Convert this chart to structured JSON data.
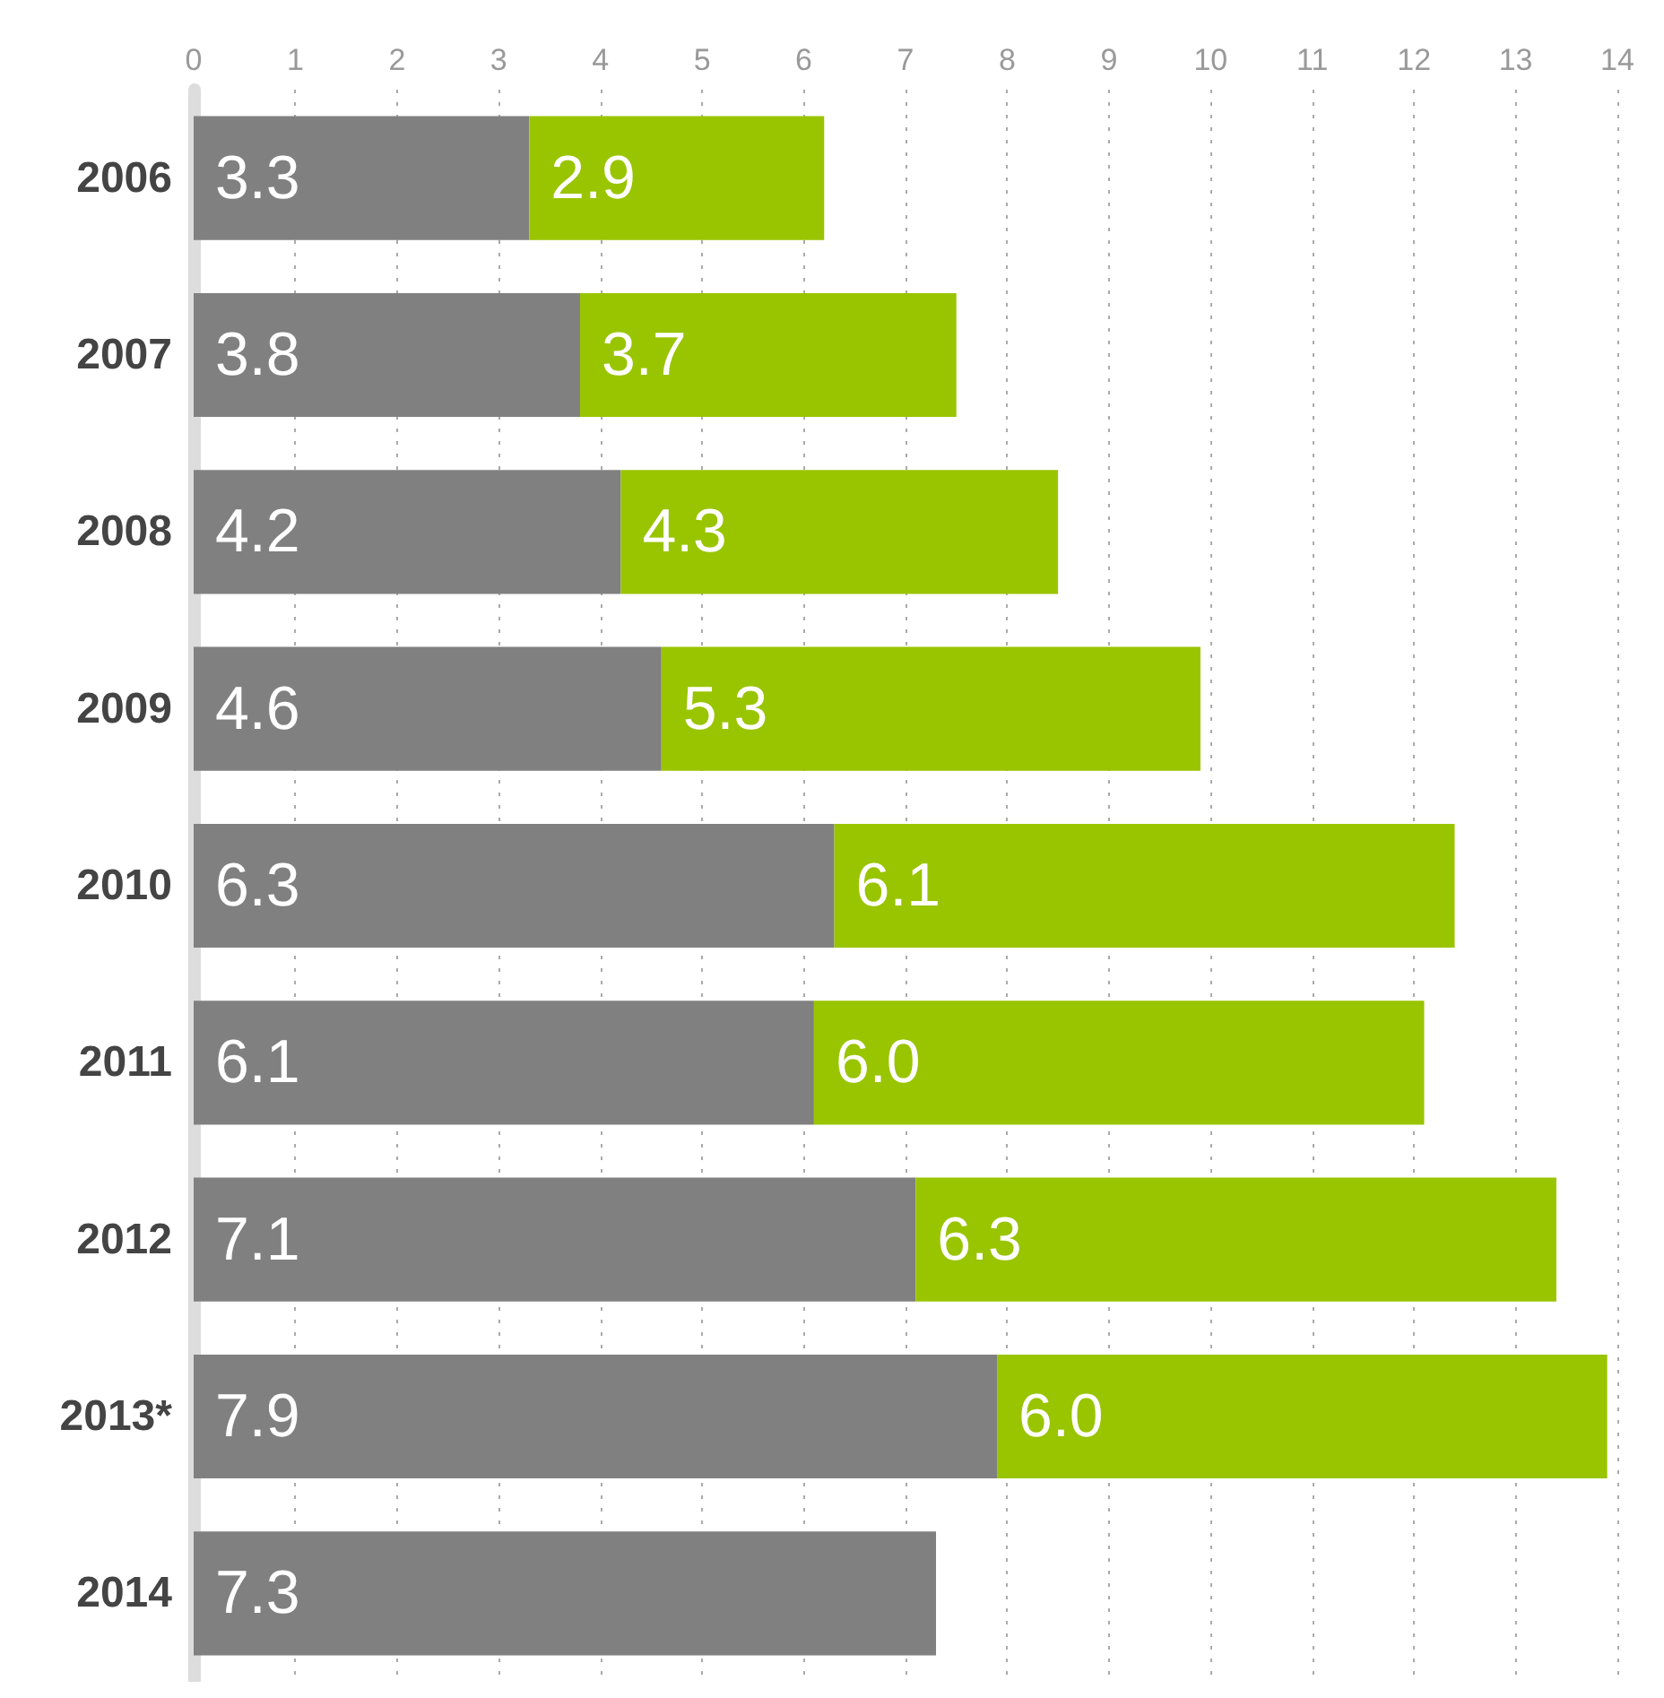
{
  "chart_data": {
    "type": "bar",
    "orientation": "horizontal",
    "stacked": true,
    "categories": [
      "2006",
      "2007",
      "2008",
      "2009",
      "2010",
      "2011",
      "2012",
      "2013*",
      "2014"
    ],
    "series": [
      {
        "color": "#808080",
        "values": [
          3.3,
          3.8,
          4.2,
          4.6,
          6.3,
          6.1,
          7.1,
          7.9,
          7.3
        ],
        "value_labels": [
          "3.3",
          "3.8",
          "4.2",
          "4.6",
          "6.3",
          "6.1",
          "7.1",
          "7.9",
          "7.3"
        ]
      },
      {
        "color": "#99c400",
        "values": [
          2.9,
          3.7,
          4.3,
          5.3,
          6.1,
          6.0,
          6.3,
          6.0,
          null
        ],
        "value_labels": [
          "2.9",
          "3.7",
          "4.3",
          "5.3",
          "6.1",
          "6.0",
          "6.3",
          "6.0",
          null
        ]
      }
    ],
    "xlim": [
      0,
      14
    ],
    "xticks": [
      0,
      1,
      2,
      3,
      4,
      5,
      6,
      7,
      8,
      9,
      10,
      11,
      12,
      13,
      14
    ],
    "grid": "x"
  }
}
